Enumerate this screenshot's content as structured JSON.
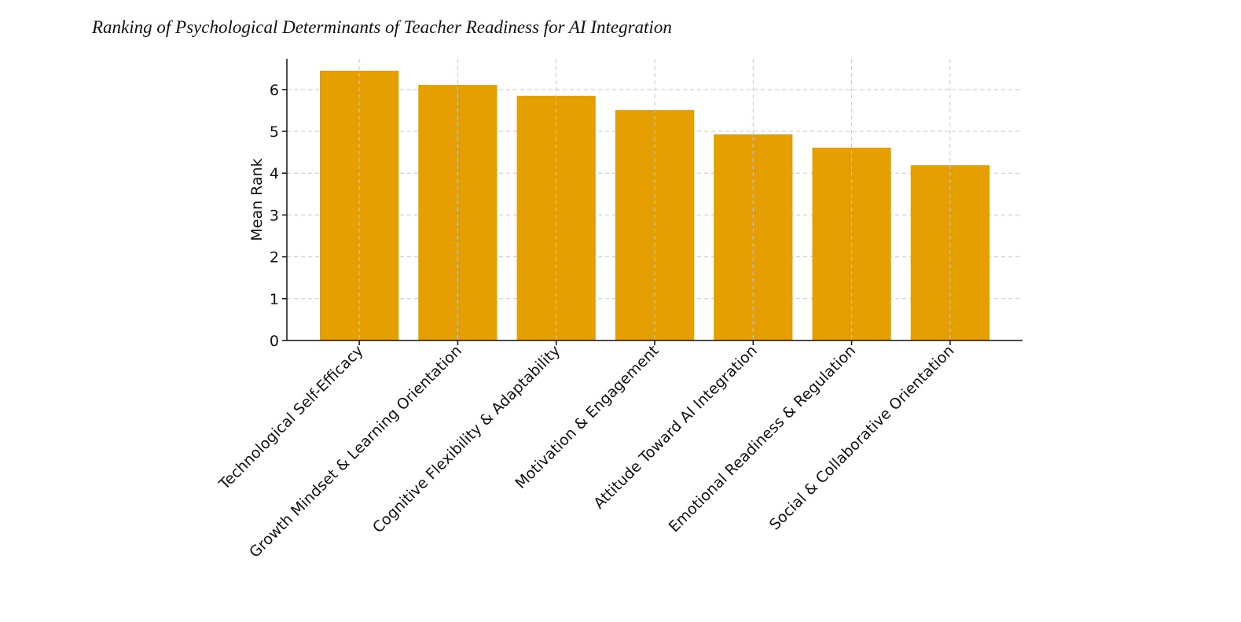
{
  "chart_data": {
    "type": "bar",
    "title": "Ranking of Psychological Determinants of Teacher Readiness for AI Integration",
    "y_label": "Mean Rank",
    "categories": [
      "Technological Self-Efficacy",
      "Growth Mindset & Learning Orientation",
      "Cognitive Flexibility & Adaptability",
      "Motivation & Engagement",
      "Attitude Toward AI Integration",
      "Emotional Readiness & Regulation",
      "Social & Collaborative Orientation"
    ],
    "values": [
      6.45,
      6.11,
      5.85,
      5.51,
      4.93,
      4.61,
      4.19
    ],
    "color": "#e5a000",
    "ylim": [
      0,
      6.73
    ],
    "yticks": [
      0,
      1,
      2,
      3,
      4,
      5,
      6
    ],
    "grid": true
  }
}
